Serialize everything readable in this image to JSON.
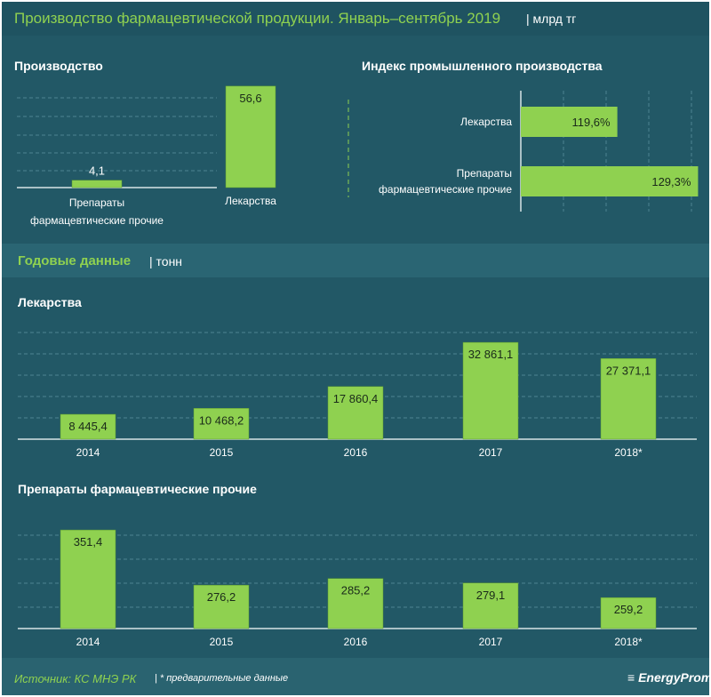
{
  "header": {
    "title": "Производство фармацевтической продукции. Январь–сентябрь 2019",
    "unit": "| млрд тг"
  },
  "section": {
    "title": "Годовые данные",
    "unit": "| тонн"
  },
  "footer": {
    "source": "Источник: КС МНЭ РК",
    "note": "| * предварительные данные",
    "logo": "EnergyProm"
  },
  "colors": {
    "background": "#225866",
    "bar": "#8fd150",
    "accent_text": "#8fd150"
  },
  "chart_data": [
    {
      "type": "bar",
      "title": "Производство",
      "categories": [
        "Препараты фармацевтические прочие",
        "Лекарства"
      ],
      "values": [
        4.1,
        56.6
      ],
      "labels": [
        "4,1",
        "56,6"
      ],
      "ylim": [
        0,
        60
      ],
      "grid": true
    },
    {
      "type": "bar",
      "orientation": "horizontal",
      "title": "Индекс промышленного производства",
      "categories": [
        "Лекарства",
        "Препараты фармацевтические прочие"
      ],
      "values": [
        119.6,
        129.3
      ],
      "labels": [
        "119,6%",
        "129,3%"
      ],
      "xlim": [
        108,
        130
      ],
      "grid": true
    },
    {
      "type": "bar",
      "title": "Лекарства",
      "categories": [
        "2014",
        "2015",
        "2016",
        "2017",
        "2018*"
      ],
      "values": [
        8445.4,
        10468.2,
        17860.4,
        32861.1,
        27371.1
      ],
      "labels": [
        "8 445,4",
        "10 468,2",
        "17 860,4",
        "32 861,1",
        "27 371,1"
      ],
      "ylim": [
        0,
        35000
      ],
      "grid": true
    },
    {
      "type": "bar",
      "title": "Препараты фармацевтические прочие",
      "categories": [
        "2014",
        "2015",
        "2016",
        "2017",
        "2018*"
      ],
      "values": [
        351.4,
        276.2,
        285.2,
        279.1,
        259.2
      ],
      "labels": [
        "351,4",
        "276,2",
        "285,2",
        "279,1",
        "259,2"
      ],
      "ylim": [
        217,
        360
      ],
      "grid": true
    }
  ]
}
